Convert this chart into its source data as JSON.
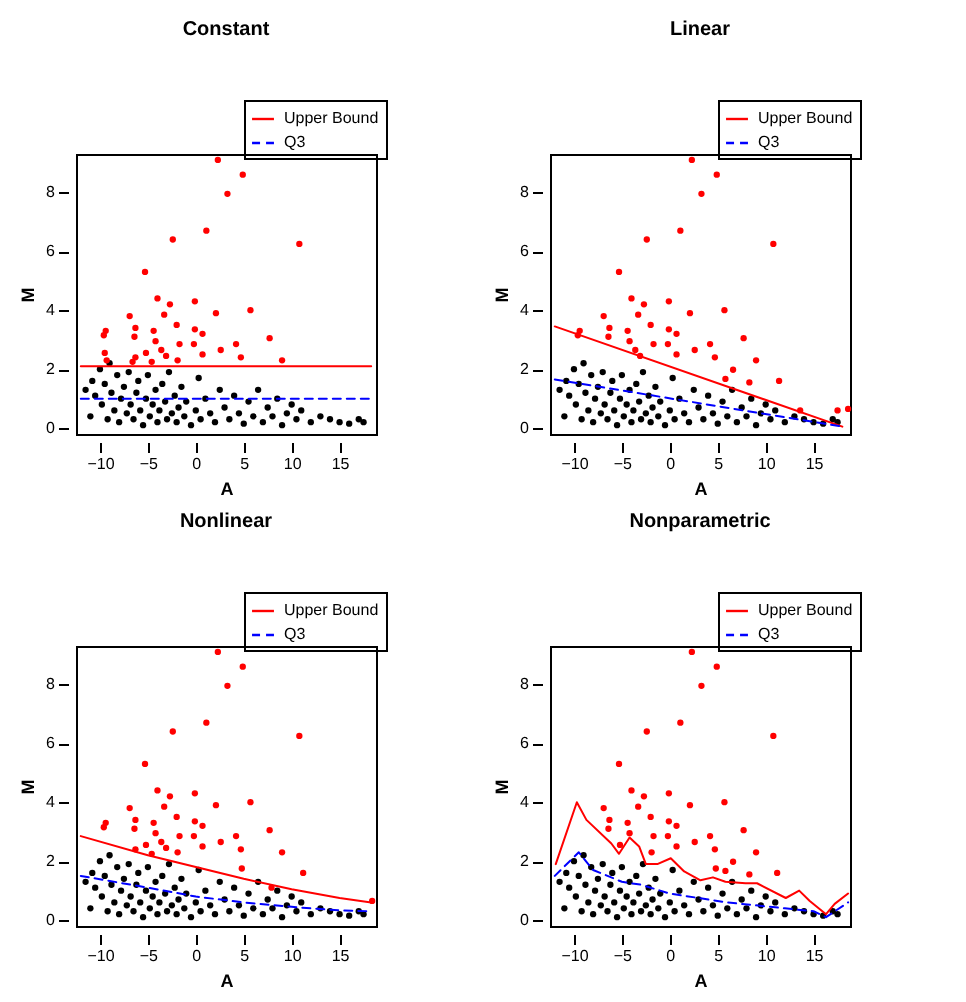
{
  "chart_data": [
    {
      "type": "scatter",
      "title": "Constant",
      "xlabel": "A",
      "ylabel": "M",
      "xlim": [
        -12.5,
        18.8
      ],
      "xticks": [
        -10,
        -5,
        0,
        5,
        10,
        15
      ],
      "ylim": [
        -0.2,
        9.3
      ],
      "yticks": [
        0,
        2,
        4,
        6,
        8
      ],
      "grid": false,
      "legend": "top right",
      "series": [
        {
          "color": "#000000",
          "x": [
            -11.5,
            -11,
            -10.8,
            -10.5,
            -10,
            -9.8,
            -9.5,
            -9.2,
            -9,
            -8.8,
            -8.5,
            -8.2,
            -8,
            -7.8,
            -7.5,
            -7.2,
            -7,
            -6.8,
            -6.5,
            -6.2,
            -6,
            -5.8,
            -5.5,
            -5.2,
            -5,
            -4.8,
            -4.5,
            -4.2,
            -4,
            -3.8,
            -3.5,
            -3.2,
            -3,
            -2.8,
            -2.5,
            -2.2,
            -2,
            -1.8,
            -1.5,
            -1.2,
            -1,
            -0.5,
            0,
            0.3,
            0.5,
            1,
            1.5,
            2,
            2.5,
            3,
            3.5,
            4,
            4.5,
            5,
            5.5,
            6,
            6.5,
            7,
            7.5,
            8,
            8.5,
            9,
            9.5,
            10,
            10.5,
            11,
            12,
            13,
            14,
            15,
            16,
            17,
            17.5
          ],
          "values": [
            1.3,
            0.4,
            1.6,
            1.1,
            2.0,
            0.8,
            1.5,
            0.3,
            2.2,
            1.2,
            0.6,
            1.8,
            0.2,
            1.0,
            1.4,
            0.5,
            1.9,
            0.8,
            0.3,
            1.2,
            1.6,
            0.6,
            0.1,
            1.0,
            1.8,
            0.4,
            0.8,
            1.3,
            0.2,
            0.6,
            1.5,
            0.9,
            0.3,
            1.9,
            0.5,
            1.1,
            0.2,
            0.7,
            1.4,
            0.4,
            0.9,
            0.1,
            0.6,
            1.7,
            0.3,
            1.0,
            0.5,
            0.2,
            1.3,
            0.7,
            0.3,
            1.1,
            0.5,
            0.15,
            0.9,
            0.4,
            1.3,
            0.2,
            0.7,
            0.4,
            1.0,
            0.1,
            0.5,
            0.8,
            0.3,
            0.6,
            0.2,
            0.4,
            0.3,
            0.2,
            0.15,
            0.3,
            0.2
          ]
        },
        {
          "color": "#ff0000",
          "x": [
            2.3,
            4.9,
            3.3,
            1.1,
            -2.4,
            10.8,
            -5.3,
            -4.0,
            -0.1,
            -2.7,
            5.7,
            2.1,
            -6.9,
            -3.3,
            -9.4,
            -6.3,
            -4.4,
            -2.0,
            -0.1,
            0.7,
            7.7,
            -6.4,
            -9.6,
            -4.2,
            -1.7,
            -0.2,
            4.2,
            2.6,
            -3.6,
            -6.3,
            -5.2,
            -3.1,
            0.7,
            4.7,
            -9.5,
            9.0,
            -6.6,
            -4.6,
            -1.9,
            -9.3
          ],
          "values": [
            9.1,
            8.6,
            7.95,
            6.7,
            6.4,
            6.25,
            5.3,
            4.4,
            4.3,
            4.2,
            4.0,
            3.9,
            3.8,
            3.85,
            3.3,
            3.4,
            3.3,
            3.5,
            3.35,
            3.2,
            3.05,
            3.1,
            3.15,
            2.95,
            2.85,
            2.85,
            2.85,
            2.65,
            2.65,
            2.4,
            2.55,
            2.45,
            2.5,
            2.4,
            2.55,
            2.3,
            2.25,
            2.25,
            2.3,
            2.3
          ]
        },
        {
          "name": "Upper Bound",
          "type": "line",
          "color": "#ff0000",
          "line_style": "solid",
          "x": [
            -12,
            18.3
          ],
          "values": [
            2.1,
            2.1
          ]
        },
        {
          "name": "Q3",
          "type": "line",
          "color": "#0000ff",
          "line_style": "dashed",
          "x": [
            -12,
            18.3
          ],
          "values": [
            1.0,
            1.0
          ]
        }
      ]
    },
    {
      "type": "scatter",
      "title": "Linear",
      "xlabel": "A",
      "ylabel": "M",
      "xlim": [
        -12.5,
        18.8
      ],
      "xticks": [
        -10,
        -5,
        0,
        5,
        10,
        15
      ],
      "ylim": [
        -0.2,
        9.3
      ],
      "yticks": [
        0,
        2,
        4,
        6,
        8
      ],
      "grid": false,
      "legend": "top right",
      "series": [
        {
          "color": "#000000",
          "x": [
            -11.5,
            -11,
            -10.8,
            -10.5,
            -10,
            -9.8,
            -9.5,
            -9.2,
            -9,
            -8.8,
            -8.5,
            -8.2,
            -8,
            -7.8,
            -7.5,
            -7.2,
            -7,
            -6.8,
            -6.5,
            -6.2,
            -6,
            -5.8,
            -5.5,
            -5.2,
            -5,
            -4.8,
            -4.5,
            -4.2,
            -4,
            -3.8,
            -3.5,
            -3.2,
            -3,
            -2.8,
            -2.5,
            -2.2,
            -2,
            -1.8,
            -1.5,
            -1.2,
            -1,
            -0.5,
            0,
            0.3,
            0.5,
            1,
            1.5,
            2,
            2.5,
            3,
            3.5,
            4,
            4.5,
            5,
            5.5,
            6,
            6.5,
            7,
            7.5,
            8,
            8.5,
            9,
            9.5,
            10,
            10.5,
            11,
            12,
            13,
            14,
            15,
            16,
            17,
            17.5
          ],
          "values": [
            1.3,
            0.4,
            1.6,
            1.1,
            2.0,
            0.8,
            1.5,
            0.3,
            2.2,
            1.2,
            0.6,
            1.8,
            0.2,
            1.0,
            1.4,
            0.5,
            1.9,
            0.8,
            0.3,
            1.2,
            1.6,
            0.6,
            0.1,
            1.0,
            1.8,
            0.4,
            0.8,
            1.3,
            0.2,
            0.6,
            1.5,
            0.9,
            0.3,
            1.9,
            0.5,
            1.1,
            0.2,
            0.7,
            1.4,
            0.4,
            0.9,
            0.1,
            0.6,
            1.7,
            0.3,
            1.0,
            0.5,
            0.2,
            1.3,
            0.7,
            0.3,
            1.1,
            0.5,
            0.15,
            0.9,
            0.4,
            1.3,
            0.2,
            0.7,
            0.4,
            1.0,
            0.1,
            0.5,
            0.8,
            0.3,
            0.6,
            0.2,
            0.4,
            0.3,
            0.2,
            0.15,
            0.3,
            0.2
          ]
        },
        {
          "color": "#ff0000",
          "x": [
            2.3,
            4.9,
            3.3,
            1.1,
            -2.4,
            10.8,
            -5.3,
            -4.0,
            -0.1,
            -2.7,
            5.7,
            2.1,
            -6.9,
            -3.3,
            -9.4,
            -6.3,
            -4.4,
            -2.0,
            -0.1,
            0.7,
            7.7,
            -6.4,
            -9.6,
            -4.2,
            -1.7,
            -0.2,
            4.2,
            2.6,
            -3.6,
            -3.1,
            0.7,
            4.7,
            9.0,
            11.4,
            8.3,
            6.6,
            5.8,
            13.6,
            17.5,
            18.6
          ],
          "values": [
            9.1,
            8.6,
            7.95,
            6.7,
            6.4,
            6.25,
            5.3,
            4.4,
            4.3,
            4.2,
            4.0,
            3.9,
            3.8,
            3.85,
            3.3,
            3.4,
            3.3,
            3.5,
            3.35,
            3.2,
            3.05,
            3.1,
            3.15,
            2.95,
            2.85,
            2.85,
            2.85,
            2.65,
            2.65,
            2.45,
            2.5,
            2.4,
            2.3,
            1.6,
            1.55,
            1.98,
            1.67,
            0.6,
            0.6,
            0.65
          ]
        },
        {
          "name": "Upper Bound",
          "type": "line",
          "color": "#ff0000",
          "line_style": "solid",
          "x": [
            -12,
            18
          ],
          "values": [
            3.45,
            0.05
          ]
        },
        {
          "name": "Q3",
          "type": "line",
          "color": "#0000ff",
          "line_style": "dashed",
          "x": [
            -12,
            18
          ],
          "values": [
            1.65,
            0.05
          ]
        }
      ]
    },
    {
      "type": "scatter",
      "title": "Nonlinear",
      "xlabel": "A",
      "ylabel": "M",
      "xlim": [
        -12.5,
        18.8
      ],
      "xticks": [
        -10,
        -5,
        0,
        5,
        10,
        15
      ],
      "ylim": [
        -0.2,
        9.3
      ],
      "yticks": [
        0,
        2,
        4,
        6,
        8
      ],
      "grid": false,
      "legend": "top right",
      "series": [
        {
          "color": "#000000",
          "x": [
            -11.5,
            -11,
            -10.8,
            -10.5,
            -10,
            -9.8,
            -9.5,
            -9.2,
            -9,
            -8.8,
            -8.5,
            -8.2,
            -8,
            -7.8,
            -7.5,
            -7.2,
            -7,
            -6.8,
            -6.5,
            -6.2,
            -6,
            -5.8,
            -5.5,
            -5.2,
            -5,
            -4.8,
            -4.5,
            -4.2,
            -4,
            -3.8,
            -3.5,
            -3.2,
            -3,
            -2.8,
            -2.5,
            -2.2,
            -2,
            -1.8,
            -1.5,
            -1.2,
            -1,
            -0.5,
            0,
            0.3,
            0.5,
            1,
            1.5,
            2,
            2.5,
            3,
            3.5,
            4,
            4.5,
            5,
            5.5,
            6,
            6.5,
            7,
            7.5,
            8,
            8.5,
            9,
            9.5,
            10,
            10.5,
            11,
            12,
            13,
            14,
            15,
            16,
            17,
            17.5
          ],
          "values": [
            1.3,
            0.4,
            1.6,
            1.1,
            2.0,
            0.8,
            1.5,
            0.3,
            2.2,
            1.2,
            0.6,
            1.8,
            0.2,
            1.0,
            1.4,
            0.5,
            1.9,
            0.8,
            0.3,
            1.2,
            1.6,
            0.6,
            0.1,
            1.0,
            1.8,
            0.4,
            0.8,
            1.3,
            0.2,
            0.6,
            1.5,
            0.9,
            0.3,
            1.9,
            0.5,
            1.1,
            0.2,
            0.7,
            1.4,
            0.4,
            0.9,
            0.1,
            0.6,
            1.7,
            0.3,
            1.0,
            0.5,
            0.2,
            1.3,
            0.7,
            0.3,
            1.1,
            0.5,
            0.15,
            0.9,
            0.4,
            1.3,
            0.2,
            0.7,
            0.4,
            1.0,
            0.1,
            0.5,
            0.8,
            0.3,
            0.6,
            0.2,
            0.4,
            0.3,
            0.2,
            0.15,
            0.3,
            0.2
          ]
        },
        {
          "color": "#ff0000",
          "x": [
            2.3,
            4.9,
            3.3,
            1.1,
            -2.4,
            10.8,
            -5.3,
            -4.0,
            -0.1,
            -2.7,
            5.7,
            2.1,
            -6.9,
            -3.3,
            -9.4,
            -6.3,
            -4.4,
            -2.0,
            -0.1,
            0.7,
            7.7,
            -6.4,
            -9.6,
            -4.2,
            -1.7,
            -0.2,
            4.2,
            2.6,
            -3.6,
            -6.3,
            -5.2,
            -3.1,
            0.7,
            4.7,
            9.0,
            -4.6,
            -1.9,
            11.2,
            7.9,
            4.8,
            18.4
          ],
          "values": [
            9.1,
            8.6,
            7.95,
            6.7,
            6.4,
            6.25,
            5.3,
            4.4,
            4.3,
            4.2,
            4.0,
            3.9,
            3.8,
            3.85,
            3.3,
            3.4,
            3.3,
            3.5,
            3.35,
            3.2,
            3.05,
            3.1,
            3.15,
            2.95,
            2.85,
            2.85,
            2.85,
            2.65,
            2.65,
            2.4,
            2.55,
            2.45,
            2.5,
            2.4,
            2.3,
            2.25,
            2.3,
            1.6,
            1.1,
            1.75,
            0.65
          ]
        },
        {
          "name": "Upper Bound",
          "type": "line",
          "color": "#ff0000",
          "line_style": "solid",
          "x": [
            -12,
            -5,
            0,
            5,
            10,
            15,
            18.3
          ],
          "values": [
            2.85,
            2.2,
            1.8,
            1.4,
            1.05,
            0.75,
            0.6
          ]
        },
        {
          "name": "Q3",
          "type": "line",
          "color": "#0000ff",
          "line_style": "dashed",
          "x": [
            -12,
            -5,
            0,
            5,
            10,
            15,
            18.3
          ],
          "values": [
            1.5,
            1.1,
            0.8,
            0.6,
            0.45,
            0.33,
            0.3
          ]
        }
      ]
    },
    {
      "type": "scatter",
      "title": "Nonparametric",
      "xlabel": "A",
      "ylabel": "M",
      "xlim": [
        -12.5,
        18.8
      ],
      "xticks": [
        -10,
        -5,
        0,
        5,
        10,
        15
      ],
      "ylim": [
        -0.2,
        9.3
      ],
      "yticks": [
        0,
        2,
        4,
        6,
        8
      ],
      "grid": false,
      "legend": "top right",
      "series": [
        {
          "color": "#000000",
          "x": [
            -11.5,
            -11,
            -10.8,
            -10.5,
            -10,
            -9.8,
            -9.5,
            -9.2,
            -9,
            -8.8,
            -8.5,
            -8.2,
            -8,
            -7.8,
            -7.5,
            -7.2,
            -7,
            -6.8,
            -6.5,
            -6.2,
            -6,
            -5.8,
            -5.5,
            -5.2,
            -5,
            -4.8,
            -4.5,
            -4.2,
            -4,
            -3.8,
            -3.5,
            -3.2,
            -3,
            -2.8,
            -2.5,
            -2.2,
            -2,
            -1.8,
            -1.5,
            -1.2,
            -1,
            -0.5,
            0,
            0.3,
            0.5,
            1,
            1.5,
            2,
            2.5,
            3,
            3.5,
            4,
            4.5,
            5,
            5.5,
            6,
            6.5,
            7,
            7.5,
            8,
            8.5,
            9,
            9.5,
            10,
            10.5,
            11,
            12,
            13,
            14,
            15,
            16,
            17,
            17.5
          ],
          "values": [
            1.3,
            0.4,
            1.6,
            1.1,
            2.0,
            0.8,
            1.5,
            0.3,
            2.2,
            1.2,
            0.6,
            1.8,
            0.2,
            1.0,
            1.4,
            0.5,
            1.9,
            0.8,
            0.3,
            1.2,
            1.6,
            0.6,
            0.1,
            1.0,
            1.8,
            0.4,
            0.8,
            1.3,
            0.2,
            0.6,
            1.5,
            0.9,
            0.3,
            1.9,
            0.5,
            1.1,
            0.2,
            0.7,
            1.4,
            0.4,
            0.9,
            0.1,
            0.6,
            1.7,
            0.3,
            1.0,
            0.5,
            0.2,
            1.3,
            0.7,
            0.3,
            1.1,
            0.5,
            0.15,
            0.9,
            0.4,
            1.3,
            0.2,
            0.7,
            0.4,
            1.0,
            0.1,
            0.5,
            0.8,
            0.3,
            0.6,
            0.2,
            0.4,
            0.3,
            0.2,
            0.15,
            0.3,
            0.2
          ]
        },
        {
          "color": "#ff0000",
          "x": [
            2.3,
            4.9,
            3.3,
            1.1,
            -2.4,
            10.8,
            -5.3,
            -4.0,
            -0.1,
            -2.7,
            5.7,
            2.1,
            -6.9,
            -3.3,
            -6.3,
            -4.4,
            -2.0,
            -0.1,
            0.7,
            7.7,
            -6.4,
            -4.2,
            -1.7,
            -0.2,
            4.2,
            2.6,
            -5.2,
            0.7,
            4.7,
            9.0,
            -1.9,
            11.2,
            8.3,
            5.8,
            6.6,
            4.8
          ],
          "values": [
            9.1,
            8.6,
            7.95,
            6.7,
            6.4,
            6.25,
            5.3,
            4.4,
            4.3,
            4.2,
            4.0,
            3.9,
            3.8,
            3.85,
            3.4,
            3.3,
            3.5,
            3.35,
            3.2,
            3.05,
            3.1,
            2.95,
            2.85,
            2.85,
            2.85,
            2.65,
            2.55,
            2.5,
            2.4,
            2.3,
            2.3,
            1.6,
            1.55,
            1.67,
            1.98,
            1.75
          ]
        },
        {
          "name": "Upper Bound",
          "type": "line",
          "color": "#ff0000",
          "line_style": "solid",
          "x": [
            -11.9,
            -9.7,
            -8.7,
            -6.1,
            -5.3,
            -4.2,
            -3.2,
            -2.5,
            -1.3,
            0.1,
            1.5,
            3.2,
            4.5,
            5.8,
            7.9,
            9.1,
            12.1,
            13.5,
            14.6,
            16.3,
            17.2,
            18.6
          ],
          "values": [
            1.9,
            4.0,
            3.4,
            2.6,
            2.25,
            2.8,
            2.5,
            1.9,
            1.9,
            2.1,
            1.65,
            1.35,
            1.45,
            1.3,
            1.25,
            1.25,
            0.75,
            1.0,
            0.65,
            0.2,
            0.55,
            0.9
          ]
        },
        {
          "name": "Q3",
          "type": "line",
          "color": "#0000ff",
          "line_style": "dashed",
          "x": [
            -12,
            -9.5,
            -8,
            -5,
            -3,
            0,
            3,
            6,
            9,
            12,
            15,
            16.3,
            18.6
          ],
          "values": [
            1.5,
            2.3,
            1.7,
            1.3,
            1.2,
            0.9,
            0.75,
            0.6,
            0.5,
            0.4,
            0.3,
            0.1,
            0.6
          ]
        }
      ]
    }
  ]
}
